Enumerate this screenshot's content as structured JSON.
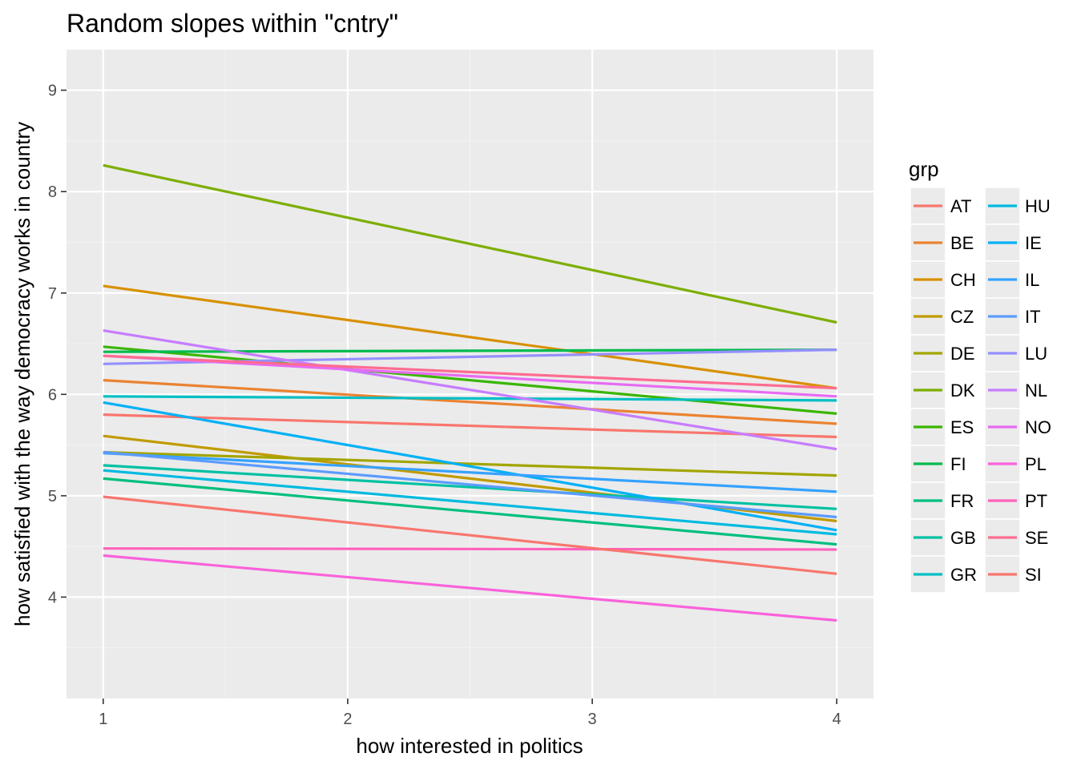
{
  "chart_data": {
    "type": "line",
    "title": "Random slopes within \"cntry\"",
    "xlabel": "how interested in politics",
    "ylabel": "how satisfied with the way democracy works in country",
    "x": [
      1,
      4
    ],
    "xlim": [
      0.85,
      4.15
    ],
    "ylim": [
      3.0,
      9.4
    ],
    "x_ticks": [
      1,
      2,
      3,
      4
    ],
    "y_ticks": [
      4,
      5,
      6,
      7,
      8,
      9
    ],
    "grid": true,
    "legend_title": "grp",
    "legend_position": "right",
    "series": [
      {
        "name": "AT",
        "color": "#F8766D",
        "values": [
          5.8,
          5.58
        ]
      },
      {
        "name": "BE",
        "color": "#EA8331",
        "values": [
          6.14,
          5.71
        ]
      },
      {
        "name": "CH",
        "color": "#D89000",
        "values": [
          7.07,
          6.06
        ]
      },
      {
        "name": "CZ",
        "color": "#C09B00",
        "values": [
          5.59,
          4.75
        ]
      },
      {
        "name": "DE",
        "color": "#A3A500",
        "values": [
          5.43,
          5.2
        ]
      },
      {
        "name": "DK",
        "color": "#7CAE00",
        "values": [
          8.26,
          6.71
        ]
      },
      {
        "name": "ES",
        "color": "#39B600",
        "values": [
          6.47,
          5.81
        ]
      },
      {
        "name": "FI",
        "color": "#00BB4E",
        "values": [
          6.42,
          6.44
        ]
      },
      {
        "name": "FR",
        "color": "#00BF7D",
        "values": [
          5.17,
          4.52
        ]
      },
      {
        "name": "GB",
        "color": "#00C1A3",
        "values": [
          5.3,
          4.87
        ]
      },
      {
        "name": "GR",
        "color": "#00BFC4",
        "values": [
          5.98,
          5.94
        ]
      },
      {
        "name": "HU",
        "color": "#00BAE0",
        "values": [
          5.25,
          4.62
        ]
      },
      {
        "name": "IE",
        "color": "#00B0F6",
        "values": [
          5.92,
          4.66
        ]
      },
      {
        "name": "IL",
        "color": "#35A2FF",
        "values": [
          5.42,
          5.04
        ]
      },
      {
        "name": "IT",
        "color": "#5B9BFF",
        "values": [
          5.43,
          4.79
        ]
      },
      {
        "name": "LU",
        "color": "#9590FF",
        "values": [
          6.3,
          6.44
        ]
      },
      {
        "name": "NL",
        "color": "#C77CFF",
        "values": [
          6.63,
          5.46
        ]
      },
      {
        "name": "NO",
        "color": "#E76BF3",
        "values": [
          6.38,
          5.98
        ]
      },
      {
        "name": "PL",
        "color": "#FA62DB",
        "values": [
          4.41,
          3.77
        ]
      },
      {
        "name": "PT",
        "color": "#FF62BC",
        "values": [
          4.48,
          4.47
        ]
      },
      {
        "name": "SE",
        "color": "#FF6C91",
        "values": [
          6.38,
          6.06
        ]
      },
      {
        "name": "SI",
        "color": "#F8766D",
        "values": [
          4.99,
          4.23
        ]
      }
    ]
  }
}
